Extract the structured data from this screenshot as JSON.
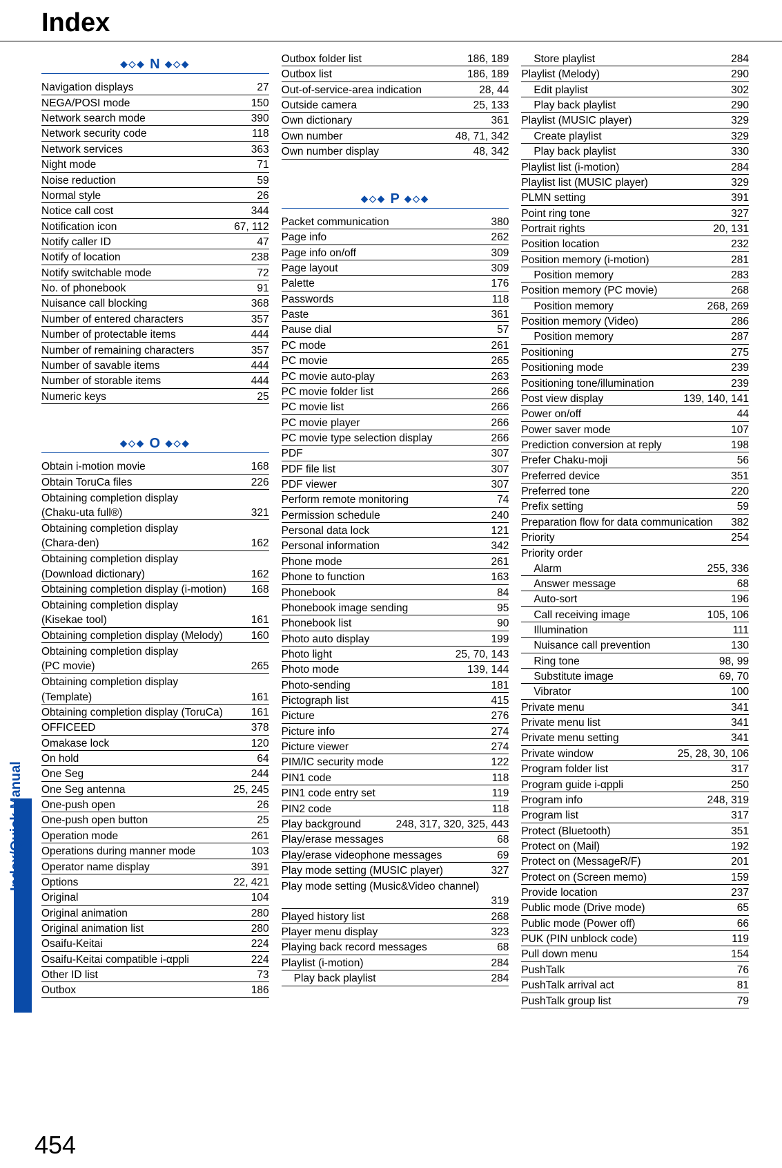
{
  "title": "Index",
  "sidebar_label": "Index/Quick Manual",
  "page_number": "454",
  "deco_left": "◆◇◆",
  "deco_right": "◆◇◆",
  "sections": {
    "N": {
      "letter": "N"
    },
    "O": {
      "letter": "O"
    },
    "P": {
      "letter": "P"
    }
  },
  "col1": [
    {
      "type": "head",
      "key": "N"
    },
    {
      "label": "Navigation displays",
      "pg": "27"
    },
    {
      "label": "NEGA/POSI mode",
      "pg": "150"
    },
    {
      "label": "Network search mode",
      "pg": "390"
    },
    {
      "label": "Network security code",
      "pg": "118"
    },
    {
      "label": "Network services",
      "pg": "363"
    },
    {
      "label": "Night mode",
      "pg": "71"
    },
    {
      "label": "Noise reduction",
      "pg": "59"
    },
    {
      "label": "Normal style",
      "pg": "26"
    },
    {
      "label": "Notice call cost",
      "pg": "344"
    },
    {
      "label": "Notification icon",
      "pg": "67, 112"
    },
    {
      "label": "Notify caller ID",
      "pg": "47"
    },
    {
      "label": "Notify of location",
      "pg": "238"
    },
    {
      "label": "Notify switchable mode",
      "pg": "72"
    },
    {
      "label": "No. of phonebook",
      "pg": "91"
    },
    {
      "label": "Nuisance call blocking",
      "pg": "368"
    },
    {
      "label": "Number of entered characters",
      "pg": "357"
    },
    {
      "label": "Number of protectable items",
      "pg": "444"
    },
    {
      "label": "Number of remaining characters",
      "pg": "357"
    },
    {
      "label": "Number of savable items",
      "pg": "444"
    },
    {
      "label": "Number of storable items",
      "pg": "444"
    },
    {
      "label": "Numeric keys",
      "pg": "25"
    },
    {
      "type": "spacer"
    },
    {
      "type": "head",
      "key": "O"
    },
    {
      "label": "Obtain i-motion movie",
      "pg": "168"
    },
    {
      "label": "Obtain ToruCa files",
      "pg": "226"
    },
    {
      "label": "Obtaining completion display",
      "noborder": true
    },
    {
      "label": "(Chaku-uta full®)",
      "pg": "321"
    },
    {
      "label": "Obtaining completion display",
      "noborder": true
    },
    {
      "label": "(Chara-den)",
      "pg": "162"
    },
    {
      "label": "Obtaining completion display",
      "noborder": true
    },
    {
      "label": "(Download dictionary)",
      "pg": "162"
    },
    {
      "label": "Obtaining completion display (i-motion)",
      "pg": "168"
    },
    {
      "label": "Obtaining completion display",
      "noborder": true
    },
    {
      "label": "(Kisekae tool)",
      "pg": "161"
    },
    {
      "label": "Obtaining completion display (Melody)",
      "pg": "160"
    },
    {
      "label": "Obtaining completion display",
      "noborder": true
    },
    {
      "label": "(PC movie)",
      "pg": "265"
    },
    {
      "label": "Obtaining completion display",
      "noborder": true
    },
    {
      "label": "(Template)",
      "pg": "161"
    },
    {
      "label": "Obtaining completion display (ToruCa)",
      "pg": "161"
    },
    {
      "label": "OFFICEED",
      "pg": "378"
    },
    {
      "label": "Omakase lock",
      "pg": "120"
    },
    {
      "label": "On hold",
      "pg": "64"
    },
    {
      "label": "One Seg",
      "pg": "244"
    },
    {
      "label": "One Seg antenna",
      "pg": "25, 245"
    },
    {
      "label": "One-push open",
      "pg": "26"
    },
    {
      "label": "One-push open button",
      "pg": "25"
    },
    {
      "label": "Operation mode",
      "pg": "261"
    },
    {
      "label": "Operations during manner mode",
      "pg": "103"
    },
    {
      "label": "Operator name display",
      "pg": "391"
    },
    {
      "label": "Options",
      "pg": "22, 421"
    },
    {
      "label": "Original",
      "pg": "104"
    },
    {
      "label": "Original animation",
      "pg": "280"
    },
    {
      "label": "Original animation list",
      "pg": "280"
    },
    {
      "label": "Osaifu-Keitai",
      "pg": "224"
    },
    {
      "label": "Osaifu-Keitai compatible i-αppli",
      "pg": "224"
    },
    {
      "label": "Other ID list",
      "pg": "73"
    },
    {
      "label": "Outbox",
      "pg": "186"
    }
  ],
  "col2": [
    {
      "label": "Outbox folder list",
      "pg": "186, 189"
    },
    {
      "label": "Outbox list",
      "pg": "186, 189"
    },
    {
      "label": "Out-of-service-area indication",
      "pg": "28, 44"
    },
    {
      "label": "Outside camera",
      "pg": "25, 133"
    },
    {
      "label": "Own dictionary",
      "pg": "361"
    },
    {
      "label": "Own number",
      "pg": "48, 71, 342"
    },
    {
      "label": "Own number display",
      "pg": "48, 342"
    },
    {
      "type": "spacer"
    },
    {
      "type": "head",
      "key": "P"
    },
    {
      "label": "Packet communication",
      "pg": "380"
    },
    {
      "label": "Page info",
      "pg": "262"
    },
    {
      "label": "Page info on/off",
      "pg": "309"
    },
    {
      "label": "Page layout",
      "pg": "309"
    },
    {
      "label": "Palette",
      "pg": "176"
    },
    {
      "label": "Passwords",
      "pg": "118"
    },
    {
      "label": "Paste",
      "pg": "361"
    },
    {
      "label": "Pause dial",
      "pg": "57"
    },
    {
      "label": "PC mode",
      "pg": "261"
    },
    {
      "label": "PC movie",
      "pg": "265"
    },
    {
      "label": "PC movie auto-play",
      "pg": "263"
    },
    {
      "label": "PC movie folder list",
      "pg": "266"
    },
    {
      "label": "PC movie list",
      "pg": "266"
    },
    {
      "label": "PC movie player",
      "pg": "266"
    },
    {
      "label": "PC movie type selection display",
      "pg": "266"
    },
    {
      "label": "PDF",
      "pg": "307"
    },
    {
      "label": "PDF file list",
      "pg": "307"
    },
    {
      "label": "PDF viewer",
      "pg": "307"
    },
    {
      "label": "Perform remote monitoring",
      "pg": "74"
    },
    {
      "label": "Permission schedule",
      "pg": "240"
    },
    {
      "label": "Personal data lock",
      "pg": "121"
    },
    {
      "label": "Personal information",
      "pg": "342"
    },
    {
      "label": "Phone mode",
      "pg": "261"
    },
    {
      "label": "Phone to function",
      "pg": "163"
    },
    {
      "label": "Phonebook",
      "pg": "84"
    },
    {
      "label": "Phonebook image sending",
      "pg": "95"
    },
    {
      "label": "Phonebook list",
      "pg": "90"
    },
    {
      "label": "Photo auto display",
      "pg": "199"
    },
    {
      "label": "Photo light",
      "pg": "25, 70, 143"
    },
    {
      "label": "Photo mode",
      "pg": "139, 144"
    },
    {
      "label": "Photo-sending",
      "pg": "181"
    },
    {
      "label": "Pictograph list",
      "pg": "415"
    },
    {
      "label": "Picture",
      "pg": "276"
    },
    {
      "label": "Picture info",
      "pg": "274"
    },
    {
      "label": "Picture viewer",
      "pg": "274"
    },
    {
      "label": "PIM/IC security mode",
      "pg": "122"
    },
    {
      "label": "PIN1 code",
      "pg": "118"
    },
    {
      "label": "PIN1 code entry set",
      "pg": "119"
    },
    {
      "label": "PIN2 code",
      "pg": "118"
    },
    {
      "label": "Play background",
      "pg": "248, 317, 320, 325, 443"
    },
    {
      "label": "Play/erase messages",
      "pg": "68"
    },
    {
      "label": "Play/erase videophone messages",
      "pg": "69"
    },
    {
      "label": "Play mode setting (MUSIC player)",
      "pg": "327"
    },
    {
      "label": "Play mode setting (Music&Video channel)",
      "noborder": true
    },
    {
      "label": "",
      "pg": "319"
    },
    {
      "label": "Played history list",
      "pg": "268"
    },
    {
      "label": "Player menu display",
      "pg": "323"
    },
    {
      "label": "Playing back record messages",
      "pg": "68"
    },
    {
      "label": "Playlist (i-motion)",
      "pg": "284"
    },
    {
      "label": "Play back playlist",
      "pg": "284",
      "indent": true
    }
  ],
  "col3": [
    {
      "label": "Store playlist",
      "pg": "284",
      "indent": true
    },
    {
      "label": "Playlist (Melody)",
      "pg": "290"
    },
    {
      "label": "Edit playlist",
      "pg": "302",
      "indent": true
    },
    {
      "label": "Play back playlist",
      "pg": "290",
      "indent": true
    },
    {
      "label": "Playlist (MUSIC player)",
      "pg": "329"
    },
    {
      "label": "Create playlist",
      "pg": "329",
      "indent": true
    },
    {
      "label": "Play back playlist",
      "pg": "330",
      "indent": true
    },
    {
      "label": "Playlist list (i-motion)",
      "pg": "284"
    },
    {
      "label": "Playlist list (MUSIC player)",
      "pg": "329"
    },
    {
      "label": "PLMN setting",
      "pg": "391"
    },
    {
      "label": "Point ring tone",
      "pg": "327"
    },
    {
      "label": "Portrait rights",
      "pg": "20, 131"
    },
    {
      "label": "Position location",
      "pg": "232"
    },
    {
      "label": "Position memory (i-motion)",
      "pg": "281"
    },
    {
      "label": "Position memory",
      "pg": "283",
      "indent": true
    },
    {
      "label": "Position memory (PC movie)",
      "pg": "268"
    },
    {
      "label": "Position memory",
      "pg": "268, 269",
      "indent": true
    },
    {
      "label": "Position memory (Video)",
      "pg": "286"
    },
    {
      "label": "Position memory",
      "pg": "287",
      "indent": true
    },
    {
      "label": "Positioning",
      "pg": "275"
    },
    {
      "label": "Positioning mode",
      "pg": "239"
    },
    {
      "label": "Positioning tone/illumination",
      "pg": "239"
    },
    {
      "label": "Post view display",
      "pg": "139, 140, 141"
    },
    {
      "label": "Power on/off",
      "pg": "44"
    },
    {
      "label": "Power saver mode",
      "pg": "107"
    },
    {
      "label": "Prediction conversion at reply",
      "pg": "198"
    },
    {
      "label": "Prefer Chaku-moji",
      "pg": "56"
    },
    {
      "label": "Preferred device",
      "pg": "351"
    },
    {
      "label": "Preferred tone",
      "pg": "220"
    },
    {
      "label": "Prefix setting",
      "pg": "59"
    },
    {
      "label": "Preparation flow for data communication",
      "pg": "382"
    },
    {
      "label": "Priority",
      "pg": "254"
    },
    {
      "label": "Priority order",
      "noborder": true
    },
    {
      "label": "Alarm",
      "pg": "255, 336",
      "indent": true
    },
    {
      "label": "Answer message",
      "pg": "68",
      "indent": true
    },
    {
      "label": "Auto-sort",
      "pg": "196",
      "indent": true
    },
    {
      "label": "Call receiving image",
      "pg": "105, 106",
      "indent": true
    },
    {
      "label": "Illumination",
      "pg": "111",
      "indent": true
    },
    {
      "label": "Nuisance call prevention",
      "pg": "130",
      "indent": true
    },
    {
      "label": "Ring tone",
      "pg": "98, 99",
      "indent": true
    },
    {
      "label": "Substitute image",
      "pg": "69, 70",
      "indent": true
    },
    {
      "label": "Vibrator",
      "pg": "100",
      "indent": true
    },
    {
      "label": "Private menu",
      "pg": "341"
    },
    {
      "label": "Private menu list",
      "pg": "341"
    },
    {
      "label": "Private menu setting",
      "pg": "341"
    },
    {
      "label": "Private window",
      "pg": "25, 28, 30, 106"
    },
    {
      "label": "Program folder list",
      "pg": "317"
    },
    {
      "label": "Program guide i-αppli",
      "pg": "250"
    },
    {
      "label": "Program info",
      "pg": "248, 319"
    },
    {
      "label": "Program list",
      "pg": "317"
    },
    {
      "label": "Protect (Bluetooth)",
      "pg": "351"
    },
    {
      "label": "Protect on (Mail)",
      "pg": "192"
    },
    {
      "label": "Protect on (MessageR/F)",
      "pg": "201"
    },
    {
      "label": "Protect on (Screen memo)",
      "pg": "159"
    },
    {
      "label": "Provide location",
      "pg": "237"
    },
    {
      "label": "Public mode (Drive mode)",
      "pg": "65"
    },
    {
      "label": "Public mode (Power off)",
      "pg": "66"
    },
    {
      "label": "PUK (PIN unblock code)",
      "pg": "119"
    },
    {
      "label": "Pull down menu",
      "pg": "154"
    },
    {
      "label": "PushTalk",
      "pg": "76"
    },
    {
      "label": "PushTalk arrival act",
      "pg": "81"
    },
    {
      "label": "PushTalk group list",
      "pg": "79"
    }
  ]
}
